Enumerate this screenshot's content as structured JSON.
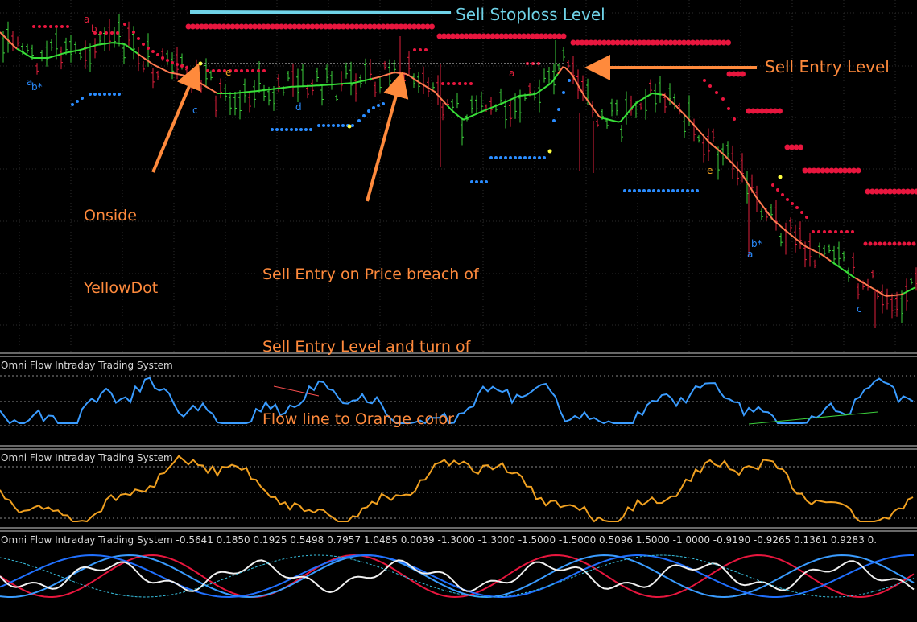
{
  "colors": {
    "background": "#000000",
    "grid": "#2b2b2b",
    "separator": "#cfcfcf",
    "bull_bar": "#3ccf3c",
    "bear_bar": "#e0203c",
    "flow_up": "#38e038",
    "flow_down": "#ff7a50",
    "sell_dots": "#e8163e",
    "buy_dots": "#2a8cff",
    "yellow_dot": "#ffff40",
    "annotation": "#ff8a3c",
    "stoploss_line": "#6fd3e8",
    "osc1": "#3a9cff",
    "osc2": "#f0a020"
  },
  "annotations": {
    "sell_stoploss": "Sell Stoploss Level",
    "sell_entry": "Sell Entry Level",
    "onside_line1": "Onside",
    "onside_line2": "YellowDot",
    "breach_line1": "Sell Entry on Price breach of",
    "breach_line2": "Sell Entry Level and turn of",
    "breach_line3": "Flow line to Orange color"
  },
  "wave_labels": [
    {
      "text": "a",
      "color": "#e0203c"
    },
    {
      "text": "b",
      "color": "#e0203c"
    },
    {
      "text": "a",
      "color": "#2a8cff"
    },
    {
      "text": "b*",
      "color": "#2a8cff"
    },
    {
      "text": "c",
      "color": "#2a8cff"
    },
    {
      "text": "e",
      "color": "#f0a020"
    },
    {
      "text": "d",
      "color": "#2a8cff"
    },
    {
      "text": "a",
      "color": "#e0203c"
    },
    {
      "text": "e",
      "color": "#f0a020"
    },
    {
      "text": "b*",
      "color": "#2a8cff"
    },
    {
      "text": "a",
      "color": "#2a8cff"
    },
    {
      "text": "c",
      "color": "#2a8cff"
    }
  ],
  "panels": {
    "osc1_title": "Omni Flow Intraday Trading System",
    "osc2_title": "Omni Flow Intraday Trading System",
    "osc3_title": "Omni Flow Intraday Trading System",
    "osc3_values": "-0.5641 0.1850 0.1925 0.5498 0.7957 1.0485 0.0039 -1.3000 -1.3000 -1.5000 -1.5000 0.5096 1.5000 -1.0000 -0.9190 -0.9265 0.1361 0.9283 0."
  }
}
